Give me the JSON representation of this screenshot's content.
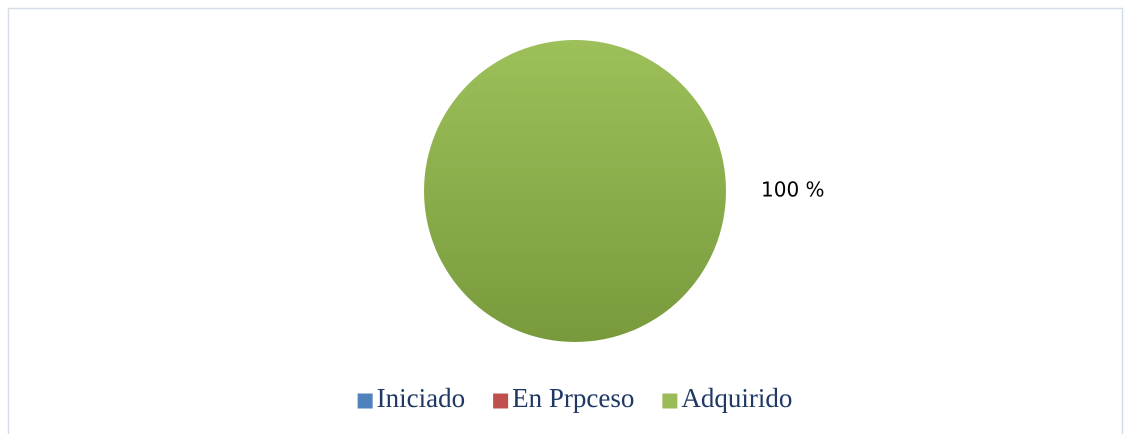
{
  "chart_data": {
    "type": "pie",
    "categories": [
      "Iniciado",
      "En Prpceso",
      "Adquirido"
    ],
    "values": [
      0,
      0,
      100
    ],
    "value_labels": [
      null,
      null,
      "100 %"
    ],
    "colors": [
      "#4f81bd",
      "#c0504d",
      "#9bbb59"
    ],
    "legend": "bottom"
  }
}
